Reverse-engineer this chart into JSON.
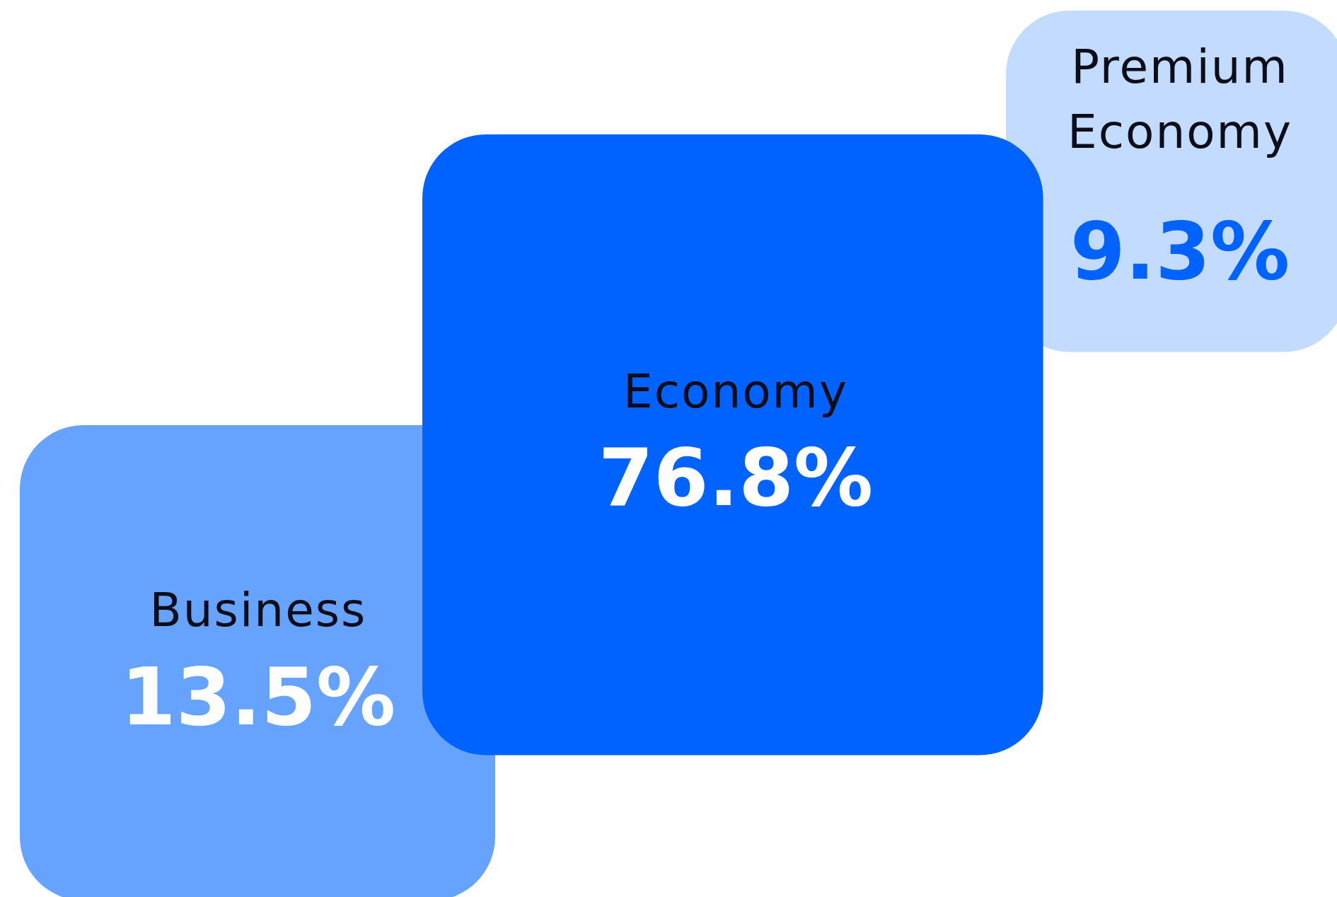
{
  "chart_data": {
    "type": "other",
    "categories": [
      "Business",
      "Economy",
      "Premium Economy"
    ],
    "values": [
      13.5,
      76.8,
      9.3
    ],
    "value_labels": [
      "13.5%",
      "76.8%",
      "9.3%"
    ],
    "colors": [
      "#66a3ff",
      "#0062ff",
      "#c2dbff"
    ]
  }
}
